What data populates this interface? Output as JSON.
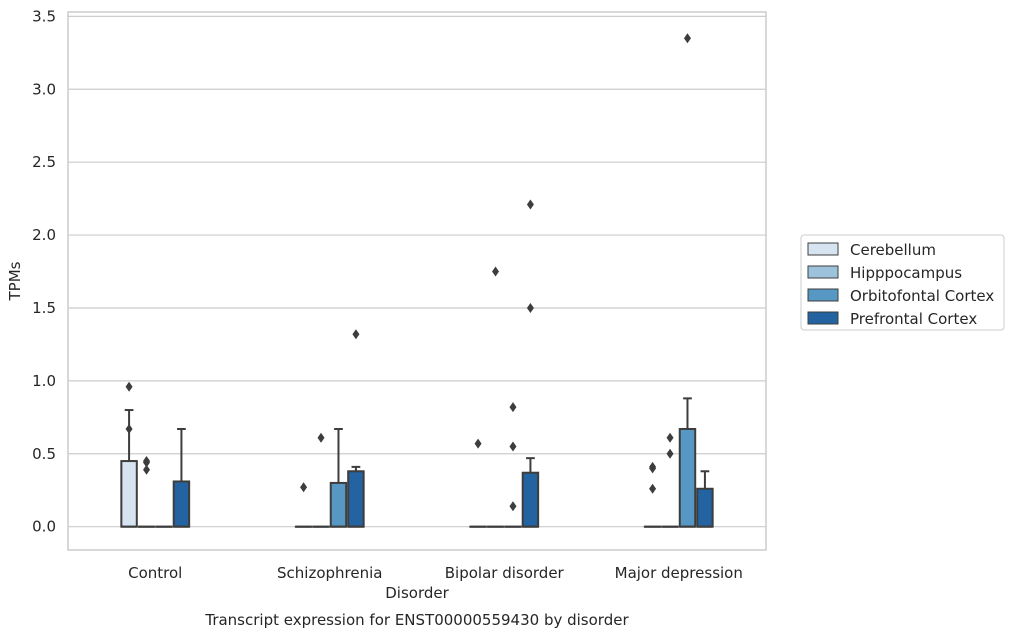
{
  "chart_data": {
    "type": "box",
    "title": "",
    "caption": "Transcript expression for ENST00000559430 by disorder",
    "xlabel": "Disorder",
    "ylabel": "TPMs",
    "ylim": [
      -0.16,
      3.53
    ],
    "yticks": [
      0.0,
      0.5,
      1.0,
      1.5,
      2.0,
      2.5,
      3.0,
      3.5
    ],
    "ytick_labels": [
      "0.0",
      "0.5",
      "1.0",
      "1.5",
      "2.0",
      "2.5",
      "3.0",
      "3.5"
    ],
    "grid": "horizontal",
    "legend_position": "right",
    "categories": [
      "Control",
      "Schizophrenia",
      "Bipolar disorder",
      "Major depression"
    ],
    "series": [
      {
        "name": "Cerebellum",
        "color": "#d6e3f1",
        "boxes": [
          {
            "q1": 0.0,
            "median": 0.0,
            "q3": 0.45,
            "whisker_low": 0.0,
            "whisker_high": 0.8,
            "outliers": [
              0.96,
              0.67
            ]
          },
          {
            "q1": 0.0,
            "median": 0.0,
            "q3": 0.0,
            "whisker_low": 0.0,
            "whisker_high": 0.0,
            "outliers": [
              0.27
            ]
          },
          {
            "q1": 0.0,
            "median": 0.0,
            "q3": 0.0,
            "whisker_low": 0.0,
            "whisker_high": 0.0,
            "outliers": [
              0.57
            ]
          },
          {
            "q1": 0.0,
            "median": 0.0,
            "q3": 0.0,
            "whisker_low": 0.0,
            "whisker_high": 0.0,
            "outliers": [
              0.41,
              0.4,
              0.26
            ]
          }
        ]
      },
      {
        "name": "Hipppocampus",
        "color": "#9dc3dc",
        "boxes": [
          {
            "q1": 0.0,
            "median": 0.0,
            "q3": 0.0,
            "whisker_low": 0.0,
            "whisker_high": 0.0,
            "outliers": [
              0.45,
              0.44,
              0.39
            ]
          },
          {
            "q1": 0.0,
            "median": 0.0,
            "q3": 0.0,
            "whisker_low": 0.0,
            "whisker_high": 0.0,
            "outliers": [
              0.61
            ]
          },
          {
            "q1": 0.0,
            "median": 0.0,
            "q3": 0.0,
            "whisker_low": 0.0,
            "whisker_high": 0.0,
            "outliers": [
              1.75
            ]
          },
          {
            "q1": 0.0,
            "median": 0.0,
            "q3": 0.0,
            "whisker_low": 0.0,
            "whisker_high": 0.0,
            "outliers": [
              0.61,
              0.5
            ]
          }
        ]
      },
      {
        "name": "Orbitofontal Cortex",
        "color": "#5697c4",
        "boxes": [
          {
            "q1": 0.0,
            "median": 0.0,
            "q3": 0.0,
            "whisker_low": 0.0,
            "whisker_high": 0.0,
            "outliers": []
          },
          {
            "q1": 0.0,
            "median": 0.0,
            "q3": 0.3,
            "whisker_low": 0.0,
            "whisker_high": 0.67,
            "outliers": []
          },
          {
            "q1": 0.0,
            "median": 0.0,
            "q3": 0.0,
            "whisker_low": 0.0,
            "whisker_high": 0.0,
            "outliers": [
              0.82,
              0.55,
              0.14
            ]
          },
          {
            "q1": 0.0,
            "median": 0.0,
            "q3": 0.67,
            "whisker_low": 0.0,
            "whisker_high": 0.88,
            "outliers": [
              3.35
            ]
          }
        ]
      },
      {
        "name": "Prefrontal Cortex",
        "color": "#2463a2",
        "boxes": [
          {
            "q1": 0.0,
            "median": 0.0,
            "q3": 0.31,
            "whisker_low": 0.0,
            "whisker_high": 0.67,
            "outliers": []
          },
          {
            "q1": 0.0,
            "median": 0.0,
            "q3": 0.38,
            "whisker_low": 0.0,
            "whisker_high": 0.41,
            "outliers": [
              1.32
            ]
          },
          {
            "q1": 0.0,
            "median": 0.0,
            "q3": 0.37,
            "whisker_low": 0.0,
            "whisker_high": 0.47,
            "outliers": [
              2.21,
              1.5
            ]
          },
          {
            "q1": 0.0,
            "median": 0.0,
            "q3": 0.26,
            "whisker_low": 0.0,
            "whisker_high": 0.38,
            "outliers": []
          }
        ]
      }
    ]
  }
}
